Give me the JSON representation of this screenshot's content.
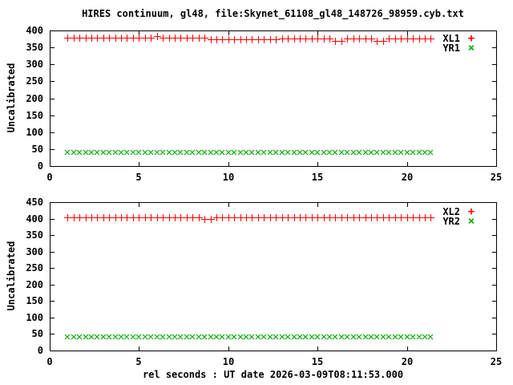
{
  "figure": {
    "title": "HIRES continuum, gl48, file:Skynet_61108_gl48_148726_98959.cyb.txt",
    "xlabel": "rel seconds : UT date 2026-03-09T08:11:53.000",
    "colors": {
      "series_red": "#ff0000",
      "series_green": "#00aa00",
      "frame": "#000000",
      "background": "#ffffff"
    }
  },
  "chart_data": [
    {
      "type": "scatter",
      "panel": "top",
      "ylabel": "Uncalibrated",
      "xlim": [
        0,
        25
      ],
      "ylim": [
        0,
        400
      ],
      "xticks": [
        0,
        5,
        10,
        15,
        20,
        25
      ],
      "yticks": [
        0,
        50,
        100,
        150,
        200,
        250,
        300,
        350,
        400
      ],
      "grid": false,
      "legend_position": "top-right-inside",
      "x": [
        1,
        1.33,
        1.67,
        2,
        2.33,
        2.67,
        3,
        3.33,
        3.67,
        4,
        4.33,
        4.67,
        5,
        5.33,
        5.67,
        6,
        6.33,
        6.67,
        7,
        7.33,
        7.67,
        8,
        8.33,
        8.67,
        9,
        9.33,
        9.67,
        10,
        10.33,
        10.67,
        11,
        11.33,
        11.67,
        12,
        12.33,
        12.67,
        13,
        13.33,
        13.67,
        14,
        14.33,
        14.67,
        15,
        15.33,
        15.67,
        16,
        16.33,
        16.67,
        17,
        17.33,
        17.67,
        18,
        18.33,
        18.67,
        19,
        19.33,
        19.67,
        20,
        20.33,
        20.67,
        21,
        21.33
      ],
      "series": [
        {
          "name": "XL1",
          "marker": "plus",
          "marker_glyph": "+",
          "color": "#ff0000",
          "values": [
            379,
            379,
            379,
            379,
            379,
            379,
            379,
            379,
            379,
            379,
            379,
            379,
            379,
            379,
            379,
            384,
            379,
            379,
            379,
            379,
            379,
            379,
            379,
            379,
            374,
            374,
            374,
            374,
            374,
            374,
            374,
            374,
            374,
            374,
            374,
            374,
            377,
            377,
            377,
            377,
            377,
            377,
            377,
            377,
            377,
            369,
            369,
            377,
            377,
            377,
            377,
            377,
            370,
            370,
            377,
            377,
            377,
            377,
            377,
            377,
            377,
            377
          ]
        },
        {
          "name": "YR1",
          "marker": "cross",
          "marker_glyph": "×",
          "color": "#00aa00",
          "values": [
            40,
            40,
            40,
            40,
            40,
            40,
            40,
            40,
            40,
            40,
            40,
            40,
            40,
            40,
            40,
            40,
            40,
            40,
            40,
            40,
            40,
            40,
            40,
            40,
            40,
            40,
            40,
            40,
            40,
            40,
            40,
            40,
            40,
            40,
            40,
            40,
            40,
            40,
            40,
            40,
            40,
            40,
            40,
            40,
            40,
            40,
            40,
            40,
            40,
            40,
            40,
            40,
            40,
            40,
            40,
            40,
            40,
            40,
            40,
            40,
            40,
            40
          ]
        }
      ]
    },
    {
      "type": "scatter",
      "panel": "bottom",
      "ylabel": "Uncalibrated",
      "xlim": [
        0,
        25
      ],
      "ylim": [
        0,
        450
      ],
      "xticks": [
        0,
        5,
        10,
        15,
        20,
        25
      ],
      "yticks": [
        0,
        50,
        100,
        150,
        200,
        250,
        300,
        350,
        400,
        450
      ],
      "grid": false,
      "legend_position": "top-right-inside",
      "x": [
        1,
        1.33,
        1.67,
        2,
        2.33,
        2.67,
        3,
        3.33,
        3.67,
        4,
        4.33,
        4.67,
        5,
        5.33,
        5.67,
        6,
        6.33,
        6.67,
        7,
        7.33,
        7.67,
        8,
        8.33,
        8.67,
        9,
        9.33,
        9.67,
        10,
        10.33,
        10.67,
        11,
        11.33,
        11.67,
        12,
        12.33,
        12.67,
        13,
        13.33,
        13.67,
        14,
        14.33,
        14.67,
        15,
        15.33,
        15.67,
        16,
        16.33,
        16.67,
        17,
        17.33,
        17.67,
        18,
        18.33,
        18.67,
        19,
        19.33,
        19.67,
        20,
        20.33,
        20.67,
        21,
        21.33
      ],
      "series": [
        {
          "name": "XL2",
          "marker": "plus",
          "marker_glyph": "+",
          "color": "#ff0000",
          "values": [
            405,
            405,
            405,
            405,
            405,
            405,
            405,
            405,
            405,
            405,
            405,
            405,
            405,
            405,
            405,
            405,
            405,
            405,
            405,
            405,
            405,
            405,
            405,
            398,
            398,
            405,
            405,
            405,
            405,
            405,
            405,
            405,
            405,
            405,
            405,
            405,
            405,
            405,
            405,
            405,
            405,
            405,
            405,
            405,
            405,
            405,
            405,
            405,
            405,
            405,
            405,
            405,
            405,
            405,
            405,
            405,
            405,
            405,
            405,
            405,
            405,
            405
          ]
        },
        {
          "name": "YR2",
          "marker": "cross",
          "marker_glyph": "×",
          "color": "#00aa00",
          "values": [
            41,
            41,
            41,
            41,
            41,
            41,
            41,
            41,
            41,
            41,
            41,
            41,
            41,
            41,
            41,
            41,
            41,
            41,
            41,
            41,
            41,
            41,
            41,
            41,
            41,
            41,
            41,
            41,
            41,
            41,
            41,
            41,
            41,
            41,
            41,
            41,
            41,
            41,
            41,
            41,
            41,
            41,
            41,
            41,
            41,
            41,
            41,
            41,
            41,
            41,
            41,
            41,
            41,
            41,
            41,
            41,
            41,
            41,
            41,
            41,
            41,
            41
          ]
        }
      ]
    }
  ]
}
